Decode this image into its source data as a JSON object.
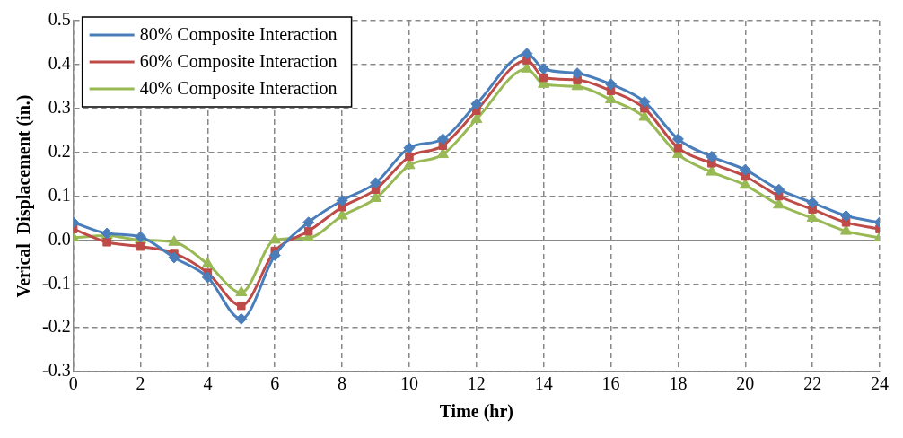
{
  "chart_data": {
    "type": "line",
    "xlabel": "Time (hr)",
    "ylabel": "Verical  Displacement (in.)",
    "x": [
      0,
      1,
      2,
      3,
      4,
      5,
      6,
      7,
      8,
      9,
      10,
      11,
      12,
      13.5,
      14,
      15,
      16,
      17,
      18,
      19,
      20,
      21,
      22,
      23,
      24
    ],
    "series": [
      {
        "name": "80% Composite Interaction",
        "color": "#4a7ebb",
        "marker": "diamond",
        "values": [
          0.04,
          0.015,
          0.007,
          -0.04,
          -0.085,
          -0.18,
          -0.035,
          0.04,
          0.09,
          0.13,
          0.21,
          0.23,
          0.31,
          0.425,
          0.39,
          0.38,
          0.355,
          0.315,
          0.23,
          0.19,
          0.16,
          0.115,
          0.085,
          0.055,
          0.04
        ]
      },
      {
        "name": "60% Composite Interaction",
        "color": "#be4b48",
        "marker": "square",
        "values": [
          0.025,
          -0.005,
          -0.015,
          -0.03,
          -0.075,
          -0.15,
          -0.025,
          0.02,
          0.075,
          0.115,
          0.19,
          0.215,
          0.295,
          0.41,
          0.37,
          0.365,
          0.34,
          0.3,
          0.21,
          0.175,
          0.145,
          0.1,
          0.07,
          0.04,
          0.025
        ]
      },
      {
        "name": "40% Composite Interaction",
        "color": "#98b954",
        "marker": "triangle",
        "values": [
          0.005,
          0.01,
          0,
          -0.005,
          -0.055,
          -0.12,
          0,
          0.005,
          0.055,
          0.095,
          0.17,
          0.195,
          0.275,
          0.39,
          0.355,
          0.35,
          0.32,
          0.28,
          0.195,
          0.155,
          0.125,
          0.08,
          0.05,
          0.02,
          0.005
        ]
      }
    ],
    "xlim": [
      0,
      24
    ],
    "xticks": [
      0,
      2,
      4,
      6,
      8,
      10,
      12,
      14,
      16,
      18,
      20,
      22,
      24
    ],
    "ylim": [
      -0.3,
      0.5
    ],
    "yticks": [
      {
        "value": -0.3,
        "label": "-0.3"
      },
      {
        "value": -0.2,
        "label": "-0.2"
      },
      {
        "value": -0.1,
        "label": "-0.1"
      },
      {
        "value": 0,
        "label": "0.0"
      },
      {
        "value": 0.1,
        "label": "0.1"
      },
      {
        "value": 0.2,
        "label": "0.2"
      },
      {
        "value": 0.3,
        "label": "0.3"
      },
      {
        "value": 0.4,
        "label": "0.4"
      },
      {
        "value": 0.5,
        "label": "0.5"
      }
    ],
    "grid": true,
    "legend": "top left",
    "line_style": "solid"
  }
}
